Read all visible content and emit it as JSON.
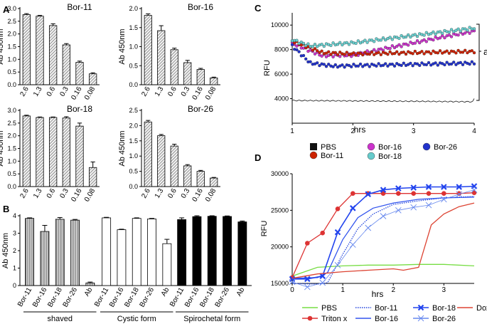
{
  "panel_labels": [
    "A",
    "B",
    "C",
    "D"
  ],
  "chart_data": [
    {
      "type": "bar",
      "panel": "A",
      "title": "Bor-11",
      "ylabel": "Ab 450nm",
      "categories": [
        "2.6",
        "1.3",
        "0.6",
        "0.3",
        "0.16",
        "0.08"
      ],
      "values": [
        2.76,
        2.7,
        2.33,
        1.57,
        0.88,
        0.43
      ],
      "errors": [
        0.04,
        0.03,
        0.07,
        0.05,
        0.05,
        0.04
      ],
      "ylim": [
        0,
        3
      ],
      "yticks": [
        "0.0",
        "0.5",
        "1.0",
        "1.5",
        "2.0",
        "2.5",
        "3.0"
      ]
    },
    {
      "type": "bar",
      "panel": "A",
      "title": "Bor-16",
      "ylabel": "Ab 450nm",
      "categories": [
        "2.6",
        "1.3",
        "0.6",
        "0.3",
        "0.16",
        "0.08"
      ],
      "values": [
        1.82,
        1.42,
        0.92,
        0.58,
        0.4,
        0.18
      ],
      "errors": [
        0.04,
        0.13,
        0.04,
        0.06,
        0.03,
        0.02
      ],
      "ylim": [
        0,
        2
      ],
      "yticks": [
        "0.0",
        "0.5",
        "1.0",
        "1.5",
        "2.0"
      ]
    },
    {
      "type": "bar",
      "panel": "A",
      "title": "Bor-18",
      "ylabel": "Ab 450nm",
      "categories": [
        "2.6",
        "1.3",
        "0.6",
        "0.3",
        "0.16",
        "0.08"
      ],
      "values": [
        2.78,
        2.72,
        2.72,
        2.7,
        2.38,
        0.75
      ],
      "errors": [
        0.03,
        0.02,
        0.02,
        0.05,
        0.12,
        0.22
      ],
      "ylim": [
        0,
        3
      ],
      "yticks": [
        "0.0",
        "0.5",
        "1.0",
        "1.5",
        "2.0",
        "2.5",
        "3.0"
      ]
    },
    {
      "type": "bar",
      "panel": "A",
      "title": "Bor-26",
      "ylabel": "Ab 450nm",
      "categories": [
        "2.6",
        "1.3",
        "0.6",
        "0.3",
        "0.16",
        "0.08"
      ],
      "values": [
        2.12,
        1.67,
        1.33,
        0.68,
        0.5,
        0.28
      ],
      "errors": [
        0.05,
        0.04,
        0.06,
        0.04,
        0.03,
        0.02
      ],
      "ylim": [
        0,
        2.5
      ],
      "yticks": [
        "0.0",
        "0.5",
        "1.0",
        "1.5",
        "2.0",
        "2.5"
      ]
    },
    {
      "type": "bar",
      "panel": "B",
      "ylabel": "Ab 450nm",
      "groups": [
        {
          "name": "shaved",
          "fill": "grey-striped",
          "categories": [
            "Bor-11",
            "Bor-16",
            "Bor-18",
            "Bor-26",
            "Ab"
          ],
          "values": [
            3.85,
            3.1,
            3.8,
            3.75,
            0.15
          ],
          "errors": [
            0.03,
            0.35,
            0.1,
            0.04,
            0.05
          ]
        },
        {
          "name": "Cystic form",
          "fill": "white",
          "categories": [
            "Bor-11",
            "Bor-16",
            "Bor-18",
            "Bor-26",
            "Ab"
          ],
          "values": [
            3.88,
            3.2,
            3.85,
            3.82,
            2.4
          ],
          "errors": [
            0.03,
            0.03,
            0.03,
            0.03,
            0.25
          ]
        },
        {
          "name": "Spirochetal form",
          "fill": "black",
          "categories": [
            "Bor-11",
            "Bor-16",
            "Bor-18",
            "Bor-26",
            "Ab"
          ],
          "values": [
            3.78,
            3.95,
            3.97,
            3.96,
            3.65
          ],
          "errors": [
            0.1,
            0.05,
            0.03,
            0.03,
            0.05
          ]
        }
      ],
      "ylim": [
        0,
        4
      ],
      "yticks": [
        "0",
        "1",
        "2",
        "3",
        "4"
      ]
    },
    {
      "type": "line",
      "panel": "C",
      "xlabel": "hrs",
      "ylabel": "RFU",
      "xlim": [
        1,
        4
      ],
      "ylim": [
        2000,
        11000
      ],
      "xticks": [
        "1",
        "2",
        "3",
        "4"
      ],
      "yticks": [
        "4000",
        "6000",
        "8000",
        "10000"
      ],
      "series": [
        {
          "name": "PBS",
          "marker": "square",
          "color": "#111111",
          "x": [
            1,
            4
          ],
          "y": [
            3850,
            3750
          ]
        },
        {
          "name": "Bor-16",
          "marker": "circle",
          "color": "#cc33cc",
          "x": [
            1,
            1.5,
            2,
            2.5,
            3,
            3.5,
            4
          ],
          "y": [
            8500,
            7500,
            7550,
            8050,
            8550,
            9050,
            9500
          ]
        },
        {
          "name": "Bor-26",
          "marker": "circle",
          "color": "#2233cc",
          "x": [
            1,
            1.3,
            1.7,
            2,
            2.5,
            3,
            3.5,
            4
          ],
          "y": [
            8300,
            6900,
            6650,
            6700,
            6750,
            6800,
            6850,
            6900
          ]
        },
        {
          "name": "Bor-11",
          "marker": "circle",
          "color": "#cc2200",
          "x": [
            1,
            1.5,
            2,
            2.5,
            3,
            3.5,
            4
          ],
          "y": [
            8700,
            7750,
            7650,
            7700,
            7750,
            7800,
            7850
          ]
        },
        {
          "name": "Bor-18",
          "marker": "circle",
          "color": "#66cccc",
          "x": [
            1,
            1.3,
            2,
            2.5,
            3,
            3.5,
            4
          ],
          "y": [
            8800,
            8300,
            8550,
            8850,
            9150,
            9450,
            9750
          ]
        }
      ],
      "annotation": "a"
    },
    {
      "type": "line",
      "panel": "D",
      "xlabel": "hrs",
      "ylabel": "RFU",
      "xlim": [
        0,
        3.6
      ],
      "ylim": [
        15000,
        30000
      ],
      "xticks": [
        "0",
        "1",
        "2",
        "3"
      ],
      "yticks": [
        "15000",
        "20000",
        "25000",
        "30000"
      ],
      "series": [
        {
          "name": "PBS",
          "style": "solid",
          "marker": "none",
          "color": "#77dd44",
          "x": [
            0,
            0.5,
            1.0,
            1.5,
            2.0,
            2.5,
            3.0,
            3.6
          ],
          "y": [
            16000,
            17200,
            17400,
            17500,
            17500,
            17600,
            17600,
            17400
          ]
        },
        {
          "name": "Triton x",
          "style": "solid",
          "marker": "circle",
          "color": "#dd3333",
          "x": [
            0,
            0.3,
            0.6,
            0.9,
            1.2,
            1.5,
            1.8,
            2.1,
            2.4,
            2.7,
            3.0,
            3.3,
            3.6
          ],
          "y": [
            15800,
            20500,
            21900,
            25200,
            27300,
            27300,
            27300,
            27300,
            27300,
            27300,
            27300,
            27300,
            27400
          ]
        },
        {
          "name": "Bor-11",
          "style": "dotted",
          "marker": "none",
          "color": "#2244dd",
          "x": [
            0,
            0.5,
            0.7,
            1.0,
            1.3,
            1.6,
            2.0,
            2.5,
            3.0,
            3.6
          ],
          "y": [
            15000,
            14900,
            15100,
            19000,
            22500,
            24500,
            25800,
            26300,
            26700,
            26900
          ]
        },
        {
          "name": "Bor-16",
          "style": "solid",
          "marker": "none",
          "color": "#3355ee",
          "x": [
            0,
            0.5,
            0.7,
            1.0,
            1.3,
            1.6,
            2.0,
            2.5,
            3.0,
            3.6
          ],
          "y": [
            15700,
            15800,
            16500,
            21000,
            24000,
            25300,
            26000,
            26500,
            26700,
            26800
          ]
        },
        {
          "name": "Bor-18",
          "style": "solid",
          "marker": "x-bold",
          "color": "#2244ee",
          "x": [
            0,
            0.3,
            0.6,
            0.9,
            1.2,
            1.5,
            1.8,
            2.1,
            2.4,
            2.7,
            3.0,
            3.3,
            3.6
          ],
          "y": [
            15600,
            15600,
            16000,
            22000,
            25300,
            27200,
            27800,
            28000,
            28100,
            28200,
            28200,
            28200,
            28300
          ]
        },
        {
          "name": "Bor-26",
          "style": "thin",
          "marker": "x",
          "color": "#6688ee",
          "x": [
            0,
            0.3,
            0.6,
            0.9,
            1.2,
            1.5,
            1.8,
            2.1,
            2.4,
            2.7,
            3.0,
            3.3,
            3.6
          ],
          "y": [
            15200,
            14500,
            15100,
            17500,
            20300,
            22600,
            24200,
            25000,
            25400,
            25700,
            26500,
            27200,
            27800
          ]
        },
        {
          "name": "Doxy",
          "style": "solid",
          "marker": "none",
          "color": "#dd4433",
          "x": [
            0,
            0.5,
            1.0,
            1.5,
            2.0,
            2.2,
            2.5,
            2.75,
            3.0,
            3.3,
            3.6
          ],
          "y": [
            15700,
            16300,
            16600,
            16800,
            17000,
            16800,
            17200,
            23000,
            24500,
            25500,
            26000
          ]
        }
      ]
    }
  ]
}
